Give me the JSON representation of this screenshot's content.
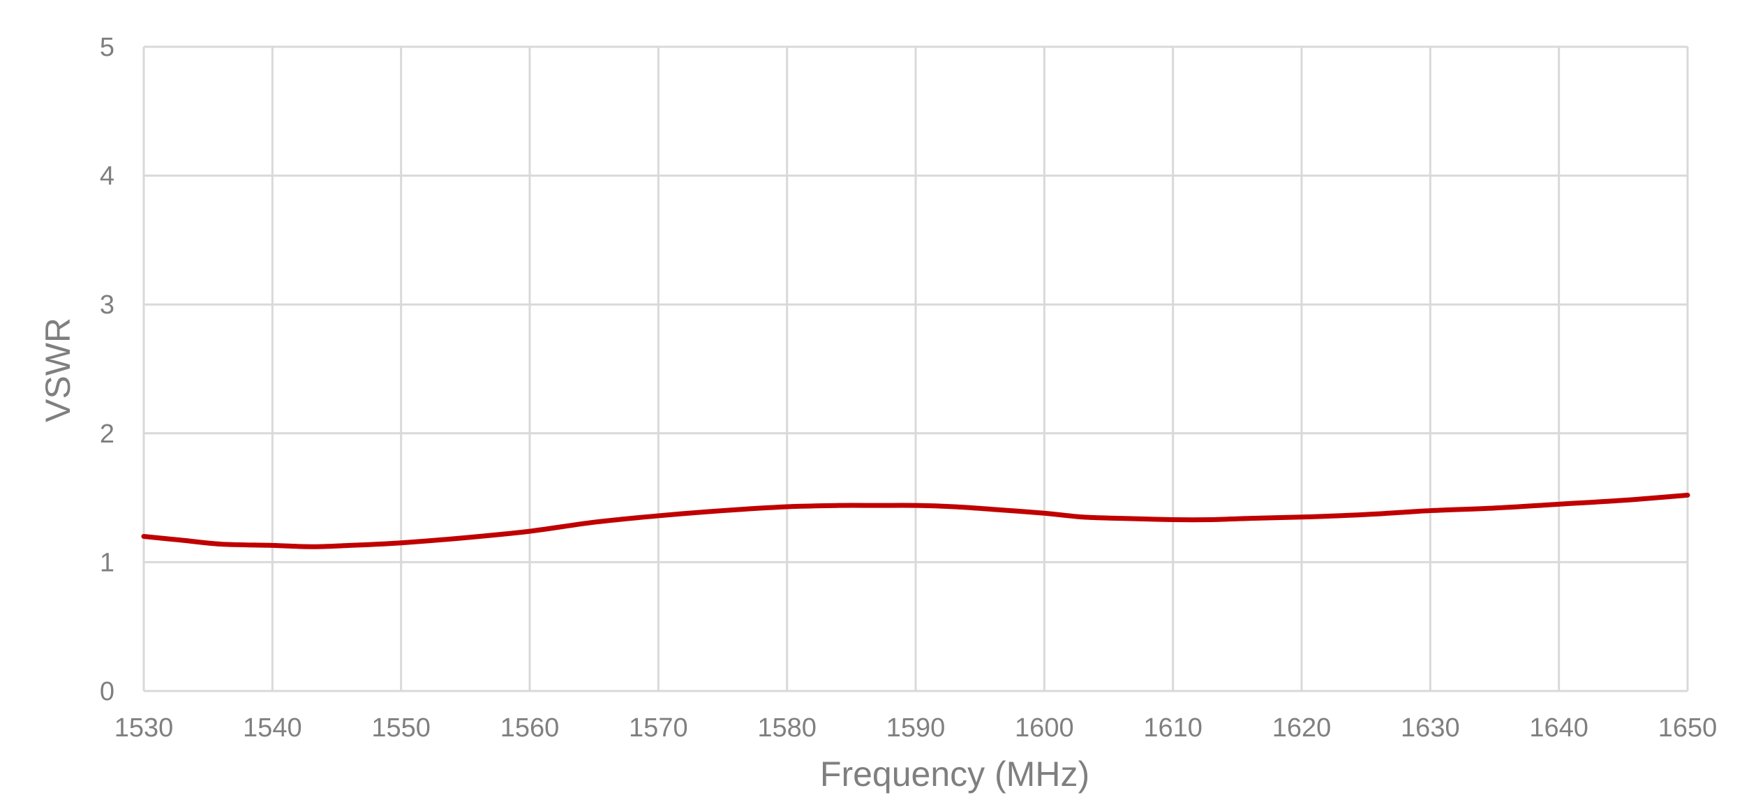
{
  "chart_data": {
    "type": "line",
    "title": "",
    "xlabel": "Frequency (MHz)",
    "ylabel": "VSWR",
    "xlim": [
      1530,
      1650
    ],
    "ylim": [
      0,
      5
    ],
    "xticks": [
      "1530",
      "1540",
      "1550",
      "1560",
      "1570",
      "1580",
      "1590",
      "1600",
      "1610",
      "1620",
      "1630",
      "1640",
      "1650"
    ],
    "yticks": [
      "0",
      "1",
      "2",
      "3",
      "4",
      "5"
    ],
    "grid": true,
    "legend": "none",
    "colors": {
      "series": "#c00000",
      "grid": "#d9d9d9",
      "text": "#7f7f7f"
    },
    "series": [
      {
        "x": [
          1530,
          1533,
          1536,
          1540,
          1543,
          1546,
          1550,
          1555,
          1560,
          1565,
          1570,
          1575,
          1580,
          1584,
          1587,
          1590,
          1593,
          1596,
          1600,
          1603,
          1606,
          1610,
          1613,
          1616,
          1620,
          1625,
          1630,
          1635,
          1640,
          1645,
          1650
        ],
        "y": [
          1.2,
          1.17,
          1.14,
          1.13,
          1.12,
          1.13,
          1.15,
          1.19,
          1.24,
          1.31,
          1.36,
          1.4,
          1.43,
          1.44,
          1.44,
          1.44,
          1.43,
          1.41,
          1.38,
          1.35,
          1.34,
          1.33,
          1.33,
          1.34,
          1.35,
          1.37,
          1.4,
          1.42,
          1.45,
          1.48,
          1.52
        ]
      }
    ]
  }
}
